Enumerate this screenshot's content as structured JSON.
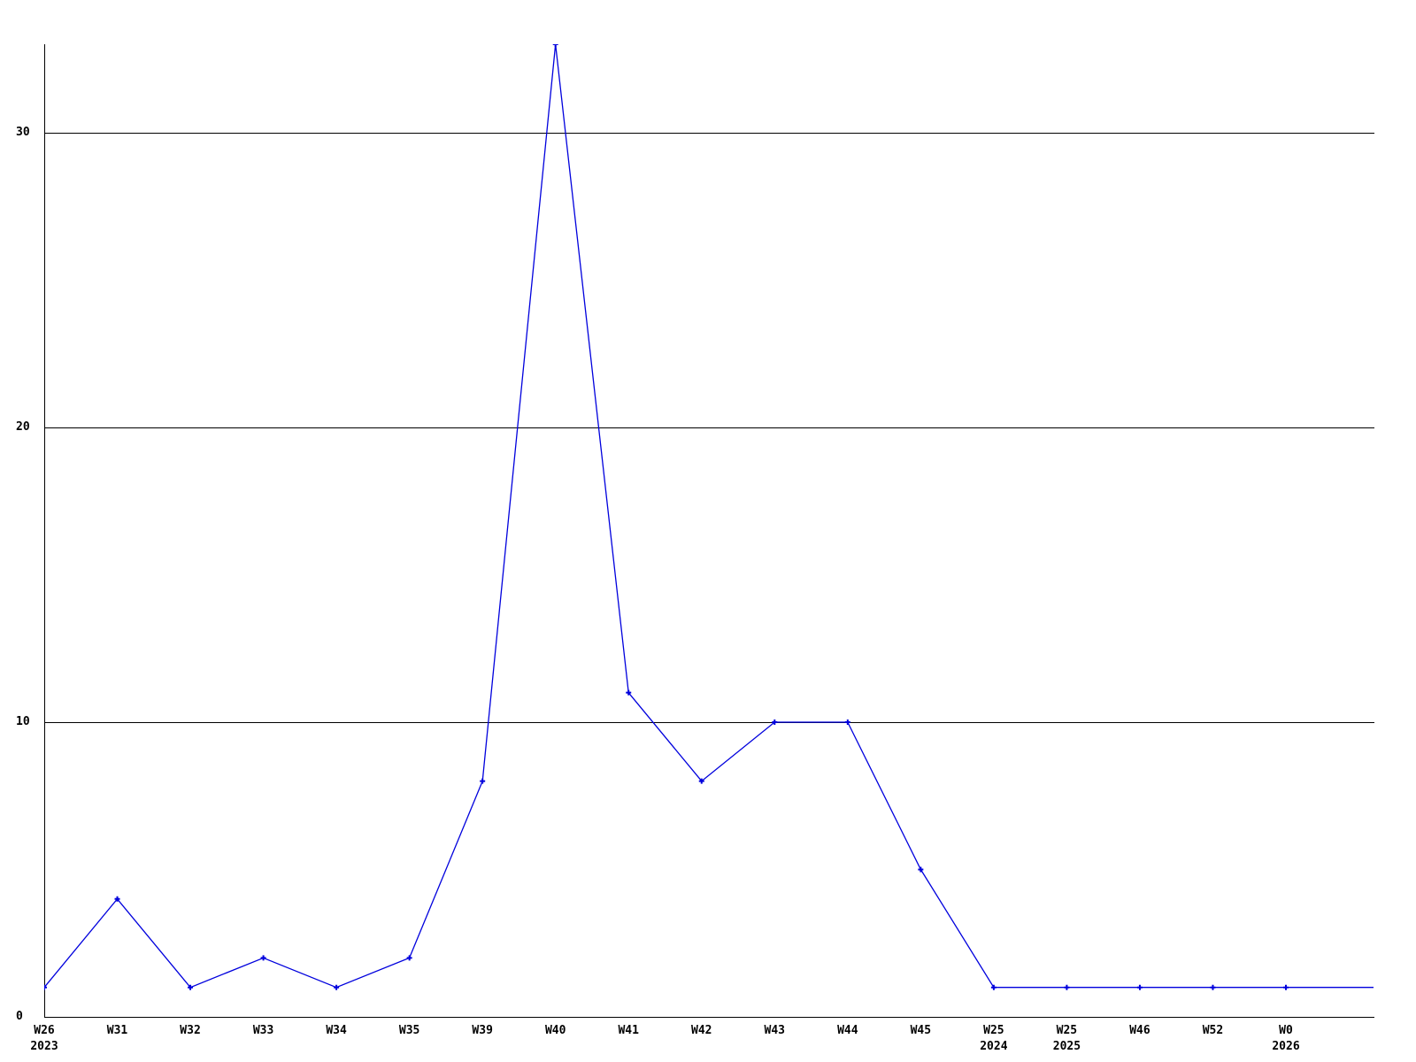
{
  "chart_data": {
    "type": "line",
    "title": "",
    "xlabel": "",
    "ylabel": "",
    "categories": [
      "W26 2023",
      "W31",
      "W32",
      "W33",
      "W34",
      "W35",
      "W39",
      "W40",
      "W41",
      "W42",
      "W43",
      "W44",
      "W45",
      "W25 2024",
      "W25 2025",
      "W46",
      "W52",
      "W0 2026"
    ],
    "x_tick_labels": [
      {
        "week": "W26",
        "year": "2023"
      },
      {
        "week": "W31",
        "year": ""
      },
      {
        "week": "W32",
        "year": ""
      },
      {
        "week": "W33",
        "year": ""
      },
      {
        "week": "W34",
        "year": ""
      },
      {
        "week": "W35",
        "year": ""
      },
      {
        "week": "W39",
        "year": ""
      },
      {
        "week": "W40",
        "year": ""
      },
      {
        "week": "W41",
        "year": ""
      },
      {
        "week": "W42",
        "year": ""
      },
      {
        "week": "W43",
        "year": ""
      },
      {
        "week": "W44",
        "year": ""
      },
      {
        "week": "W45",
        "year": ""
      },
      {
        "week": "W25",
        "year": "2024"
      },
      {
        "week": "W25",
        "year": "2025"
      },
      {
        "week": "W46",
        "year": ""
      },
      {
        "week": "W52",
        "year": ""
      },
      {
        "week": "W0",
        "year": "2026"
      }
    ],
    "values": [
      1,
      4,
      1,
      2,
      1,
      2,
      8,
      33,
      11,
      8,
      10,
      10,
      5,
      1,
      1,
      1,
      1,
      1
    ],
    "y_ticks": [
      0,
      10,
      20,
      30
    ],
    "ylim": [
      0,
      33
    ],
    "grid": "horizontal gridlines at 10, 20, 30",
    "legend": "none",
    "marker": "plus",
    "line_extends_to_right_edge": true
  },
  "colors": {
    "line": "#0000dd",
    "axis": "#000000",
    "grid": "#000000",
    "text": "#000000",
    "background": "#ffffff"
  }
}
